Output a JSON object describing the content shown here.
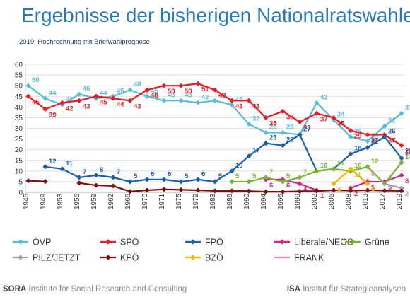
{
  "title": "Ergebnisse der bisherigen Nationalratswahlen",
  "subtitle": "2019: Hochrechnung mit Briefwahlprognose",
  "footer": {
    "left_brand": "SORA",
    "left_text": " Institute for Social Research and Consulting",
    "right_brand": "ISA",
    "right_text": " Institut für Strategieanalysen"
  },
  "chart_data": {
    "type": "line",
    "title": "Ergebnisse der bisherigen Nationalratswahlen",
    "ylim": [
      0,
      60
    ],
    "yticks": [
      0,
      5,
      10,
      15,
      20,
      25,
      30,
      35,
      40,
      45,
      50,
      55,
      60
    ],
    "grid": true,
    "legend_position": "bottom",
    "x": [
      "1945",
      "1949",
      "1953",
      "1956",
      "1959",
      "1962",
      "1966",
      "1970",
      "1971",
      "1975",
      "1979",
      "1983",
      "1986",
      "1990",
      "1994",
      "1995",
      "1999",
      "2002",
      "2006",
      "2008",
      "2013",
      "2017",
      "2019"
    ],
    "series": [
      {
        "name": "ÖVP",
        "color": "#5bbcd6",
        "marker": "diamond",
        "values": [
          50,
          44,
          41,
          46,
          44,
          45,
          48,
          45,
          43,
          43,
          42,
          43,
          41,
          32,
          28,
          28,
          27,
          42,
          34,
          26,
          24,
          31,
          37
        ],
        "labels": [
          "50",
          "44",
          "41",
          "46",
          "44",
          "45",
          "48",
          "45",
          "43",
          "43",
          "42",
          "43",
          "41",
          "32",
          "28",
          "28",
          "27",
          "42",
          "34",
          "26",
          "24",
          "31",
          "37"
        ]
      },
      {
        "name": "SPÖ",
        "color": "#e31e24",
        "marker": "diamond",
        "values": [
          45,
          39,
          42,
          43,
          45,
          44,
          43,
          48,
          50,
          50,
          51,
          48,
          43,
          43,
          35,
          38,
          33,
          37,
          35,
          29,
          27,
          27,
          22
        ],
        "labels": [
          "45",
          "39",
          "42",
          "43",
          "45",
          "44",
          "43",
          "48",
          "50",
          "50",
          "51",
          "48",
          "43",
          "43",
          "35",
          "38",
          "33",
          "37",
          "35",
          "29",
          "27",
          "27",
          "22"
        ]
      },
      {
        "name": "FPÖ",
        "color": "#1a5eac",
        "marker": "diamond",
        "values": [
          null,
          12,
          11,
          7,
          8,
          7,
          5,
          6,
          6,
          5,
          6,
          5,
          10,
          17,
          23,
          22,
          27,
          10,
          11,
          18,
          21,
          26,
          16
        ],
        "labels": [
          null,
          "12",
          "11",
          "7",
          "8",
          "7",
          "5",
          "6",
          "6",
          "5",
          "6",
          "5",
          "10",
          "17",
          "23",
          "22",
          "27",
          "10",
          "11",
          "18",
          "21",
          "26",
          "16"
        ]
      },
      {
        "name": "Liberale/NEOS",
        "color": "#d8207c",
        "marker": "diamond",
        "values": [
          null,
          null,
          null,
          null,
          null,
          null,
          null,
          null,
          null,
          null,
          null,
          null,
          null,
          null,
          6,
          6,
          4,
          1,
          null,
          2,
          5,
          5,
          8
        ],
        "labels": [
          null,
          null,
          null,
          null,
          null,
          null,
          null,
          null,
          null,
          null,
          null,
          null,
          null,
          null,
          "6",
          "6",
          "4",
          "1",
          null,
          "2",
          "5",
          "5",
          "8"
        ]
      },
      {
        "name": "Grüne",
        "color": "#7ab42c",
        "marker": "diamond",
        "values": [
          null,
          null,
          null,
          null,
          null,
          null,
          null,
          null,
          null,
          null,
          null,
          null,
          5,
          5,
          7,
          5,
          7,
          10,
          11,
          10,
          12,
          4,
          14
        ],
        "labels": [
          null,
          null,
          null,
          null,
          null,
          null,
          null,
          null,
          null,
          null,
          null,
          null,
          "5",
          "5",
          "7",
          "5",
          "7",
          "10",
          "11",
          "10",
          "12",
          "4",
          "14"
        ]
      },
      {
        "name": "PILZ/JETZT",
        "color": "#9e9e9e",
        "marker": "diamond",
        "values": [
          null,
          null,
          null,
          null,
          null,
          null,
          null,
          null,
          null,
          null,
          null,
          null,
          null,
          null,
          null,
          null,
          null,
          null,
          null,
          null,
          null,
          4,
          2
        ],
        "labels": [
          null,
          null,
          null,
          null,
          null,
          null,
          null,
          null,
          null,
          null,
          null,
          null,
          null,
          null,
          null,
          null,
          null,
          null,
          null,
          null,
          null,
          "4",
          "2"
        ]
      },
      {
        "name": "KPÖ",
        "color": "#7a1010",
        "marker": "diamond",
        "values": [
          5.4,
          5.1,
          null,
          4.4,
          3.3,
          3.0,
          0.4,
          1.0,
          1.4,
          1.2,
          1.0,
          0.7,
          0.7,
          0.6,
          0.3,
          0.3,
          0.5,
          0.6,
          1.0,
          0.8,
          1.0,
          0.8,
          0.7
        ],
        "labels": [
          null,
          null,
          null,
          null,
          null,
          null,
          null,
          null,
          null,
          null,
          null,
          null,
          null,
          null,
          null,
          null,
          null,
          null,
          null,
          null,
          null,
          null,
          null
        ]
      },
      {
        "name": "BZÖ",
        "color": "#f5b400",
        "marker": "diamond",
        "values": [
          null,
          null,
          null,
          null,
          null,
          null,
          null,
          null,
          null,
          null,
          null,
          null,
          null,
          null,
          null,
          null,
          null,
          null,
          4,
          11,
          4,
          null,
          null
        ],
        "labels": [
          null,
          null,
          null,
          null,
          null,
          null,
          null,
          null,
          null,
          null,
          null,
          null,
          null,
          null,
          null,
          null,
          null,
          null,
          "4",
          "11",
          "4",
          null,
          null
        ]
      },
      {
        "name": "FRANK",
        "color": "#e88aa8",
        "marker": "none",
        "values": [
          null,
          null,
          null,
          null,
          null,
          null,
          null,
          null,
          null,
          null,
          null,
          null,
          null,
          null,
          null,
          null,
          null,
          null,
          null,
          null,
          6,
          null,
          null
        ],
        "labels": [
          null,
          null,
          null,
          null,
          null,
          null,
          null,
          null,
          null,
          null,
          null,
          null,
          null,
          null,
          null,
          null,
          null,
          null,
          null,
          null,
          "6",
          null,
          null
        ]
      }
    ]
  }
}
